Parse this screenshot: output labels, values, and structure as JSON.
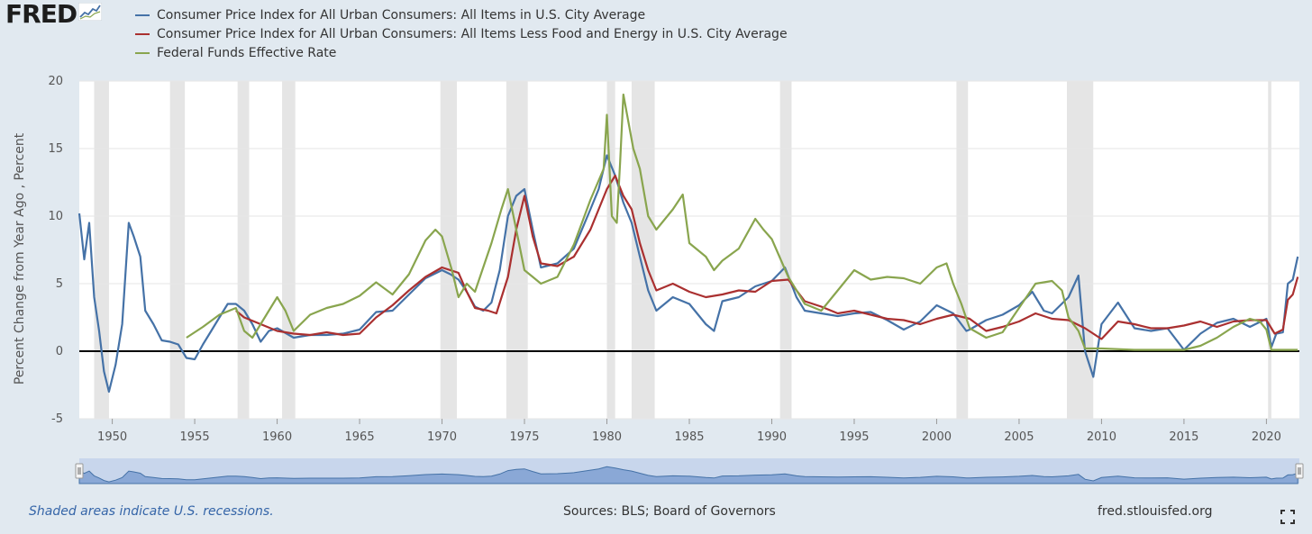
{
  "logo": {
    "text": "FRED"
  },
  "footer": {
    "recessions_note": "Shaded areas indicate U.S. recessions.",
    "sources": "Sources: BLS; Board of Governors",
    "site": "fred.stlouisfed.org"
  },
  "icons": {
    "fullscreen": "expand-icon",
    "logo_chart": "line-chart-icon"
  },
  "chart_data": {
    "type": "line",
    "title": "",
    "xlabel": "",
    "ylabel": "Percent Change from Year Ago , Percent",
    "xlim": [
      1948,
      2022
    ],
    "ylim": [
      -5,
      20
    ],
    "x_ticks": [
      1950,
      1955,
      1960,
      1965,
      1970,
      1975,
      1980,
      1985,
      1990,
      1995,
      2000,
      2005,
      2010,
      2015,
      2020
    ],
    "y_ticks": [
      -5,
      0,
      5,
      10,
      15,
      20
    ],
    "grid": "horizontal",
    "legend": "top-left",
    "zero_line": true,
    "recessions": [
      [
        1948.9,
        1949.8
      ],
      [
        1953.5,
        1954.4
      ],
      [
        1957.6,
        1958.3
      ],
      [
        1960.3,
        1961.1
      ],
      [
        1969.9,
        1970.9
      ],
      [
        1973.9,
        1975.2
      ],
      [
        1980.0,
        1980.5
      ],
      [
        1981.5,
        1982.9
      ],
      [
        1990.5,
        1991.2
      ],
      [
        2001.2,
        2001.9
      ],
      [
        2007.9,
        2009.5
      ],
      [
        2020.1,
        2020.3
      ]
    ],
    "series": [
      {
        "name": "Consumer Price Index for All Urban Consumers: All Items in U.S. City Average",
        "color": "#4572a7",
        "x": [
          1948,
          1948.3,
          1948.6,
          1948.9,
          1949.2,
          1949.5,
          1949.8,
          1950.2,
          1950.6,
          1951.0,
          1951.3,
          1951.7,
          1952.0,
          1952.5,
          1953.0,
          1953.5,
          1954.0,
          1954.5,
          1955.0,
          1955.5,
          1956.0,
          1956.5,
          1957.0,
          1957.5,
          1958.0,
          1958.5,
          1959.0,
          1959.5,
          1960.0,
          1961.0,
          1962.0,
          1963.0,
          1964.0,
          1965.0,
          1966.0,
          1967.0,
          1968.0,
          1969.0,
          1970.0,
          1970.5,
          1971.0,
          1971.5,
          1972.0,
          1972.5,
          1973.0,
          1973.5,
          1974.0,
          1974.5,
          1975.0,
          1975.5,
          1976.0,
          1977.0,
          1978.0,
          1979.0,
          1979.5,
          1980.0,
          1980.5,
          1981.0,
          1981.5,
          1982.0,
          1982.5,
          1983.0,
          1984.0,
          1985.0,
          1986.0,
          1986.5,
          1987.0,
          1988.0,
          1989.0,
          1990.0,
          1990.8,
          1991.5,
          1992.0,
          1993.0,
          1994.0,
          1995.0,
          1996.0,
          1997.0,
          1998.0,
          1999.0,
          2000.0,
          2001.0,
          2001.8,
          2002.0,
          2003.0,
          2004.0,
          2005.0,
          2005.8,
          2006.5,
          2007.0,
          2008.0,
          2008.6,
          2009.0,
          2009.5,
          2010.0,
          2011.0,
          2012.0,
          2013.0,
          2014.0,
          2015.0,
          2016.0,
          2017.0,
          2018.0,
          2019.0,
          2020.0,
          2020.3,
          2020.6,
          2021.0,
          2021.3,
          2021.6,
          2021.9
        ],
        "values": [
          10.2,
          6.8,
          9.5,
          4.0,
          1.5,
          -1.5,
          -3.0,
          -1.0,
          2.0,
          9.5,
          8.5,
          7.0,
          3.0,
          2.0,
          0.8,
          0.7,
          0.5,
          -0.5,
          -0.6,
          0.5,
          1.5,
          2.5,
          3.5,
          3.5,
          3.0,
          2.0,
          0.7,
          1.5,
          1.7,
          1.0,
          1.2,
          1.2,
          1.3,
          1.6,
          2.9,
          3.0,
          4.2,
          5.4,
          6.0,
          5.7,
          5.3,
          4.4,
          3.3,
          3.0,
          3.6,
          6.0,
          10.0,
          11.5,
          12.0,
          9.0,
          6.2,
          6.5,
          7.6,
          10.5,
          12.0,
          14.5,
          13.0,
          11.0,
          9.5,
          7.0,
          4.5,
          3.0,
          4.0,
          3.5,
          2.0,
          1.5,
          3.7,
          4.0,
          4.8,
          5.2,
          6.2,
          4.0,
          3.0,
          2.8,
          2.6,
          2.8,
          2.9,
          2.3,
          1.6,
          2.2,
          3.4,
          2.8,
          1.5,
          1.6,
          2.3,
          2.7,
          3.4,
          4.4,
          3.0,
          2.8,
          4.0,
          5.6,
          0.0,
          -1.9,
          2.0,
          3.6,
          1.7,
          1.5,
          1.7,
          0.1,
          1.3,
          2.1,
          2.4,
          1.8,
          2.4,
          0.3,
          1.3,
          1.4,
          5.0,
          5.3,
          7.0
        ]
      },
      {
        "name": "Consumer Price Index for All Urban Consumers: All Items Less Food and Energy in U.S. City Average",
        "color": "#aa3030",
        "x": [
          1957.5,
          1958.0,
          1959.0,
          1960.0,
          1961.0,
          1962.0,
          1963.0,
          1964.0,
          1965.0,
          1966.0,
          1967.0,
          1968.0,
          1969.0,
          1970.0,
          1971.0,
          1971.5,
          1972.0,
          1972.8,
          1973.3,
          1974.0,
          1974.5,
          1975.0,
          1975.5,
          1976.0,
          1977.0,
          1978.0,
          1979.0,
          1980.0,
          1980.5,
          1981.0,
          1981.5,
          1982.0,
          1982.5,
          1983.0,
          1984.0,
          1985.0,
          1986.0,
          1987.0,
          1988.0,
          1989.0,
          1990.0,
          1991.0,
          1992.0,
          1993.0,
          1994.0,
          1995.0,
          1996.0,
          1997.0,
          1998.0,
          1999.0,
          2000.0,
          2001.0,
          2002.0,
          2003.0,
          2004.0,
          2005.0,
          2006.0,
          2007.0,
          2008.0,
          2009.0,
          2010.0,
          2011.0,
          2012.0,
          2013.0,
          2014.0,
          2015.0,
          2016.0,
          2017.0,
          2018.0,
          2019.0,
          2020.0,
          2020.5,
          2021.0,
          2021.3,
          2021.6,
          2021.9
        ],
        "values": [
          3.0,
          2.5,
          2.0,
          1.5,
          1.3,
          1.2,
          1.4,
          1.2,
          1.3,
          2.5,
          3.4,
          4.5,
          5.5,
          6.2,
          5.8,
          4.4,
          3.2,
          3.0,
          2.8,
          5.5,
          9.0,
          11.5,
          8.5,
          6.5,
          6.3,
          7.0,
          9.0,
          12.0,
          13.0,
          11.5,
          10.5,
          8.0,
          6.0,
          4.5,
          5.0,
          4.4,
          4.0,
          4.2,
          4.5,
          4.4,
          5.2,
          5.3,
          3.7,
          3.3,
          2.8,
          3.0,
          2.7,
          2.4,
          2.3,
          2.0,
          2.4,
          2.7,
          2.4,
          1.5,
          1.8,
          2.2,
          2.8,
          2.4,
          2.3,
          1.7,
          0.9,
          2.2,
          2.0,
          1.7,
          1.7,
          1.9,
          2.2,
          1.8,
          2.2,
          2.3,
          2.3,
          1.3,
          1.6,
          3.8,
          4.2,
          5.5
        ]
      },
      {
        "name": "Federal Funds Effective Rate",
        "color": "#89a54e",
        "x": [
          1954.5,
          1955.5,
          1956.5,
          1957.5,
          1958.0,
          1958.5,
          1959.5,
          1960.0,
          1960.5,
          1961.0,
          1962.0,
          1963.0,
          1964.0,
          1965.0,
          1966.0,
          1967.0,
          1968.0,
          1969.0,
          1969.6,
          1970.0,
          1970.6,
          1971.0,
          1971.5,
          1972.0,
          1973.0,
          1973.6,
          1974.0,
          1974.5,
          1975.0,
          1975.5,
          1976.0,
          1977.0,
          1978.0,
          1979.0,
          1979.8,
          1980.0,
          1980.3,
          1980.6,
          1980.8,
          1981.0,
          1981.3,
          1981.6,
          1982.0,
          1982.5,
          1983.0,
          1984.0,
          1984.6,
          1985.0,
          1986.0,
          1986.5,
          1987.0,
          1988.0,
          1989.0,
          1989.5,
          1990.0,
          1991.0,
          1992.0,
          1993.0,
          1994.0,
          1995.0,
          1996.0,
          1997.0,
          1998.0,
          1999.0,
          2000.0,
          2000.6,
          2001.0,
          2001.5,
          2002.0,
          2003.0,
          2004.0,
          2005.0,
          2006.0,
          2007.0,
          2007.6,
          2008.0,
          2008.6,
          2009.0,
          2010.0,
          2012.0,
          2015.0,
          2016.0,
          2017.0,
          2018.0,
          2019.0,
          2019.6,
          2020.0,
          2020.3,
          2021.0,
          2021.9
        ],
        "values": [
          1.0,
          1.8,
          2.7,
          3.2,
          1.5,
          1.0,
          3.0,
          4.0,
          3.0,
          1.5,
          2.7,
          3.2,
          3.5,
          4.1,
          5.1,
          4.2,
          5.7,
          8.2,
          9.0,
          8.5,
          6.0,
          4.0,
          5.0,
          4.4,
          8.0,
          10.5,
          12.0,
          9.0,
          6.0,
          5.5,
          5.0,
          5.5,
          7.9,
          11.2,
          13.5,
          17.5,
          10.0,
          9.5,
          14.0,
          19.0,
          17.0,
          15.0,
          13.5,
          10.0,
          9.0,
          10.5,
          11.6,
          8.0,
          7.0,
          6.0,
          6.7,
          7.6,
          9.8,
          9.0,
          8.3,
          5.5,
          3.5,
          3.0,
          4.5,
          6.0,
          5.3,
          5.5,
          5.4,
          5.0,
          6.2,
          6.5,
          5.0,
          3.5,
          1.7,
          1.0,
          1.4,
          3.2,
          5.0,
          5.2,
          4.5,
          2.5,
          1.5,
          0.2,
          0.2,
          0.1,
          0.1,
          0.4,
          1.0,
          1.8,
          2.4,
          2.2,
          1.6,
          0.1,
          0.1,
          0.1
        ]
      }
    ]
  }
}
